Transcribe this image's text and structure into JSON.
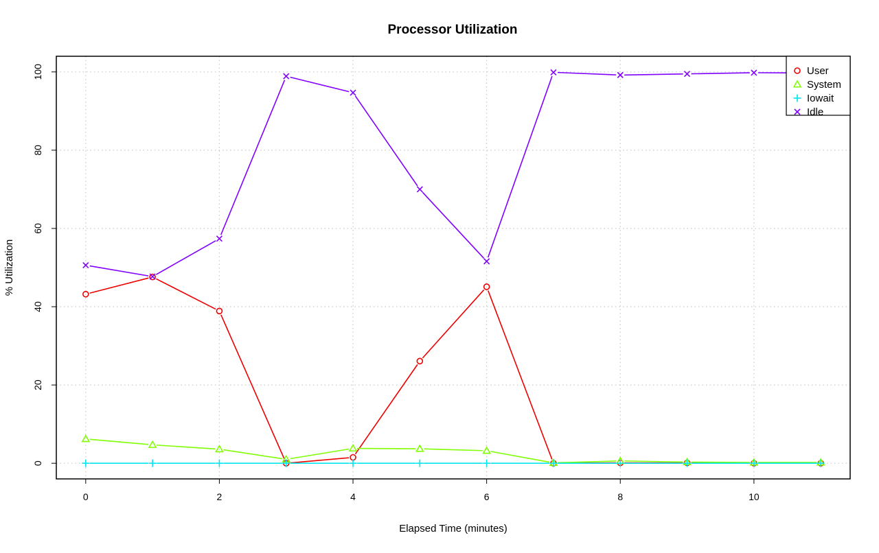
{
  "chart_data": {
    "type": "line",
    "title": "Processor Utilization",
    "xlabel": "Elapsed Time (minutes)",
    "ylabel": "% Utilization",
    "x": [
      0,
      1,
      2,
      3,
      4,
      5,
      6,
      7,
      8,
      9,
      10,
      11
    ],
    "xlim": [
      -0.44,
      11.44
    ],
    "ylim": [
      -4,
      104
    ],
    "x_ticks": [
      0,
      2,
      4,
      6,
      8,
      10
    ],
    "y_ticks": [
      0,
      20,
      40,
      60,
      80,
      100
    ],
    "grid": true,
    "legend_position": "top-right",
    "series": [
      {
        "name": "User",
        "color": "#ee0000",
        "marker": "circle",
        "values": [
          43.2,
          47.6,
          38.9,
          0.0,
          1.5,
          26.1,
          45.1,
          0.0,
          0.1,
          0.1,
          0.0,
          0.0
        ]
      },
      {
        "name": "System",
        "color": "#7fff00",
        "marker": "triangle",
        "values": [
          6.2,
          4.7,
          3.6,
          1.0,
          3.8,
          3.7,
          3.2,
          0.1,
          0.6,
          0.3,
          0.2,
          0.2
        ]
      },
      {
        "name": "Iowait",
        "color": "#00e5ee",
        "marker": "plus",
        "values": [
          0.0,
          0.0,
          0.0,
          0.0,
          0.0,
          0.0,
          0.0,
          0.0,
          0.0,
          0.0,
          0.0,
          0.0
        ]
      },
      {
        "name": "Idle",
        "color": "#8000ff",
        "marker": "cross",
        "values": [
          50.6,
          47.7,
          57.4,
          98.9,
          94.7,
          70.0,
          51.6,
          99.9,
          99.2,
          99.5,
          99.8,
          99.7
        ]
      }
    ]
  }
}
